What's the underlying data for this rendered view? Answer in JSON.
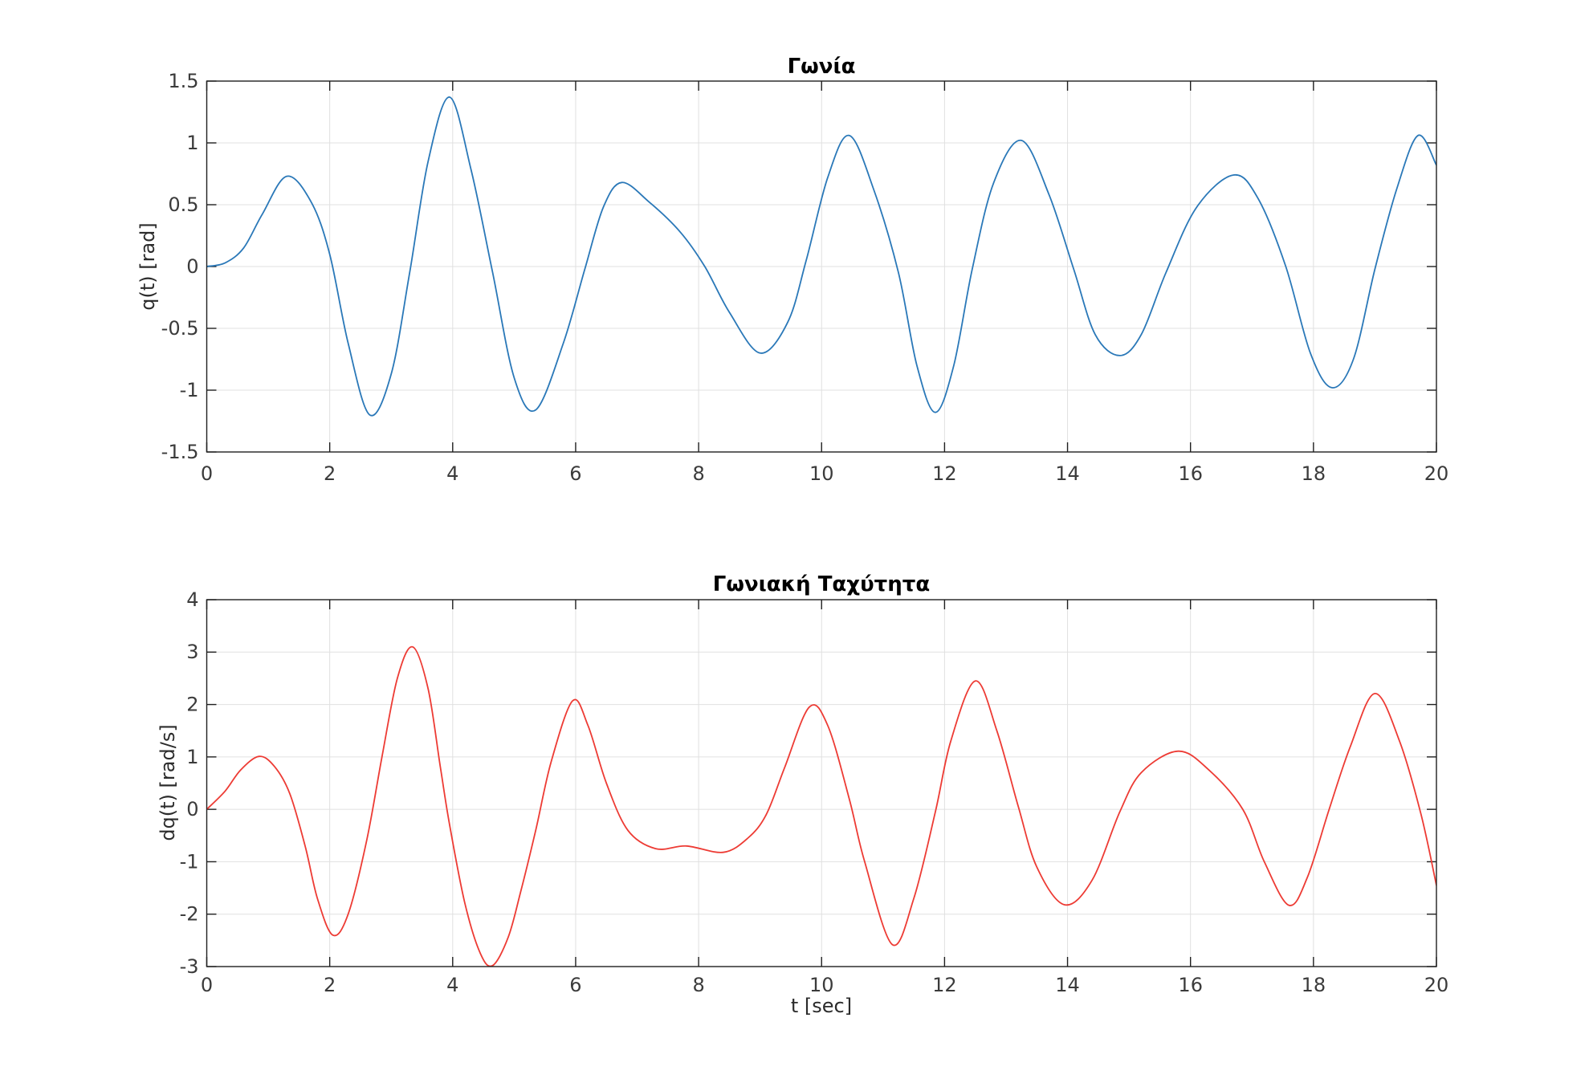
{
  "figure": {
    "background": "#ffffff",
    "axis_color": "#1f1f1f",
    "grid_color": "#e0e0e0",
    "tick_label_color": "#3b3b3b"
  },
  "chart_data": [
    {
      "type": "line",
      "title": "Γωνία",
      "xlabel": "",
      "ylabel": "q(t) [rad]",
      "xlim": [
        0,
        20
      ],
      "ylim": [
        -1.5,
        1.5
      ],
      "grid": true,
      "legend": "none",
      "xtick_values": [
        0,
        2,
        4,
        6,
        8,
        10,
        12,
        14,
        16,
        18,
        20
      ],
      "xtick_labels": [
        "0",
        "2",
        "4",
        "6",
        "8",
        "10",
        "12",
        "14",
        "16",
        "18",
        "20"
      ],
      "ytick_values": [
        -1.5,
        -1,
        -0.5,
        0,
        0.5,
        1,
        1.5
      ],
      "ytick_labels": [
        "-1.5",
        "-1",
        "-0.5",
        "0",
        "0.5",
        "1",
        "1.5"
      ],
      "line_color": "#2a78b8",
      "series": [
        {
          "name": "q(t)",
          "points": [
            [
              0,
              0.0
            ],
            [
              0.3,
              0.03
            ],
            [
              0.6,
              0.15
            ],
            [
              0.9,
              0.42
            ],
            [
              1.3,
              0.73
            ],
            [
              1.7,
              0.52
            ],
            [
              2.0,
              0.1
            ],
            [
              2.3,
              -0.62
            ],
            [
              2.65,
              -1.2
            ],
            [
              3.0,
              -0.87
            ],
            [
              3.3,
              -0.05
            ],
            [
              3.6,
              0.85
            ],
            [
              3.95,
              1.37
            ],
            [
              4.3,
              0.78
            ],
            [
              4.65,
              -0.05
            ],
            [
              5.0,
              -0.9
            ],
            [
              5.35,
              -1.16
            ],
            [
              5.8,
              -0.62
            ],
            [
              6.15,
              -0.02
            ],
            [
              6.45,
              0.48
            ],
            [
              6.75,
              0.68
            ],
            [
              7.2,
              0.52
            ],
            [
              7.7,
              0.28
            ],
            [
              8.1,
              0.0
            ],
            [
              8.5,
              -0.37
            ],
            [
              9.0,
              -0.7
            ],
            [
              9.45,
              -0.45
            ],
            [
              9.75,
              0.05
            ],
            [
              10.1,
              0.72
            ],
            [
              10.45,
              1.06
            ],
            [
              10.85,
              0.62
            ],
            [
              11.25,
              -0.05
            ],
            [
              11.55,
              -0.8
            ],
            [
              11.85,
              -1.18
            ],
            [
              12.15,
              -0.8
            ],
            [
              12.45,
              -0.02
            ],
            [
              12.8,
              0.68
            ],
            [
              13.25,
              1.02
            ],
            [
              13.7,
              0.58
            ],
            [
              14.1,
              -0.02
            ],
            [
              14.45,
              -0.55
            ],
            [
              14.85,
              -0.72
            ],
            [
              15.2,
              -0.55
            ],
            [
              15.6,
              -0.05
            ],
            [
              16.1,
              0.48
            ],
            [
              16.7,
              0.74
            ],
            [
              17.1,
              0.55
            ],
            [
              17.55,
              0.0
            ],
            [
              17.95,
              -0.7
            ],
            [
              18.3,
              -0.98
            ],
            [
              18.65,
              -0.75
            ],
            [
              19.0,
              -0.02
            ],
            [
              19.35,
              0.62
            ],
            [
              19.7,
              1.06
            ],
            [
              20.0,
              0.82
            ]
          ]
        }
      ]
    },
    {
      "type": "line",
      "title": "Γωνιακή Ταχύτητα",
      "xlabel": "t [sec]",
      "ylabel": "dq(t) [rad/s]",
      "xlim": [
        0,
        20
      ],
      "ylim": [
        -3,
        4
      ],
      "grid": true,
      "legend": "none",
      "xtick_values": [
        0,
        2,
        4,
        6,
        8,
        10,
        12,
        14,
        16,
        18,
        20
      ],
      "xtick_labels": [
        "0",
        "2",
        "4",
        "6",
        "8",
        "10",
        "12",
        "14",
        "16",
        "18",
        "20"
      ],
      "ytick_values": [
        -3,
        -2,
        -1,
        0,
        1,
        2,
        3,
        4
      ],
      "ytick_labels": [
        "-3",
        "-2",
        "-1",
        "0",
        "1",
        "2",
        "3",
        "4"
      ],
      "line_color": "#ed3b34",
      "series": [
        {
          "name": "dq(t)",
          "points": [
            [
              0,
              0.0
            ],
            [
              0.3,
              0.35
            ],
            [
              0.55,
              0.75
            ],
            [
              0.85,
              1.01
            ],
            [
              1.1,
              0.82
            ],
            [
              1.35,
              0.3
            ],
            [
              1.6,
              -0.7
            ],
            [
              1.8,
              -1.7
            ],
            [
              2.05,
              -2.4
            ],
            [
              2.3,
              -2.0
            ],
            [
              2.6,
              -0.6
            ],
            [
              2.85,
              1.0
            ],
            [
              3.1,
              2.5
            ],
            [
              3.35,
              3.1
            ],
            [
              3.6,
              2.3
            ],
            [
              3.8,
              0.8
            ],
            [
              3.95,
              -0.3
            ],
            [
              4.2,
              -1.8
            ],
            [
              4.45,
              -2.75
            ],
            [
              4.65,
              -2.98
            ],
            [
              4.9,
              -2.45
            ],
            [
              5.1,
              -1.6
            ],
            [
              5.35,
              -0.4
            ],
            [
              5.6,
              0.9
            ],
            [
              5.95,
              2.07
            ],
            [
              6.2,
              1.6
            ],
            [
              6.5,
              0.5
            ],
            [
              6.85,
              -0.4
            ],
            [
              7.3,
              -0.75
            ],
            [
              7.8,
              -0.7
            ],
            [
              8.4,
              -0.82
            ],
            [
              8.8,
              -0.55
            ],
            [
              9.1,
              -0.1
            ],
            [
              9.4,
              0.8
            ],
            [
              9.8,
              1.95
            ],
            [
              10.1,
              1.6
            ],
            [
              10.45,
              0.2
            ],
            [
              10.7,
              -1.0
            ],
            [
              11.15,
              -2.58
            ],
            [
              11.5,
              -1.7
            ],
            [
              11.85,
              -0.05
            ],
            [
              12.1,
              1.3
            ],
            [
              12.5,
              2.45
            ],
            [
              12.85,
              1.5
            ],
            [
              13.2,
              0.05
            ],
            [
              13.5,
              -1.1
            ],
            [
              13.95,
              -1.82
            ],
            [
              14.4,
              -1.35
            ],
            [
              14.85,
              -0.05
            ],
            [
              15.2,
              0.7
            ],
            [
              15.8,
              1.11
            ],
            [
              16.3,
              0.75
            ],
            [
              16.85,
              0.0
            ],
            [
              17.2,
              -1.0
            ],
            [
              17.6,
              -1.83
            ],
            [
              17.9,
              -1.3
            ],
            [
              18.25,
              -0.02
            ],
            [
              18.6,
              1.2
            ],
            [
              19.0,
              2.21
            ],
            [
              19.4,
              1.3
            ],
            [
              19.75,
              -0.1
            ],
            [
              20.0,
              -1.45
            ]
          ]
        }
      ]
    }
  ]
}
